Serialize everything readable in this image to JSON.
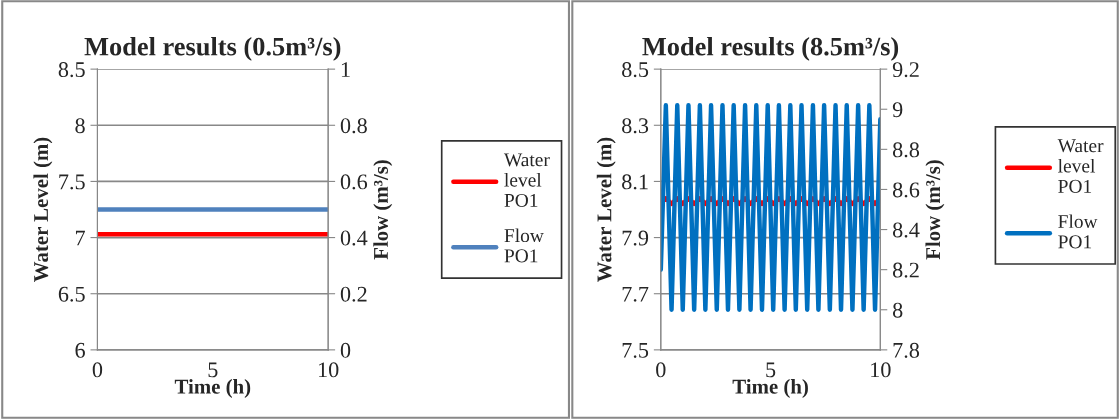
{
  "chart_data": [
    {
      "type": "line",
      "title": "Model results (0.5m³/s)",
      "xlabel": "Time (h)",
      "ylabel": "Water Level (m)",
      "y2label": "Flow (m³/s)",
      "xlim": [
        0,
        10
      ],
      "xticks": [
        0,
        5,
        10
      ],
      "ylim": [
        6,
        8.5
      ],
      "yticks": [
        6,
        6.5,
        7,
        7.5,
        8,
        8.5
      ],
      "y2lim": [
        0,
        1
      ],
      "y2ticks": [
        0,
        0.2,
        0.4,
        0.6,
        0.8,
        1
      ],
      "grid": "y",
      "legend": "right",
      "series": [
        {
          "name": "Water level PO1",
          "color": "#ff0000",
          "x": [
            0,
            10
          ],
          "values": [
            7.03,
            7.03
          ]
        },
        {
          "name": "Flow PO1",
          "color": "#4f81bd",
          "axis": "y2",
          "x": [
            0,
            10
          ],
          "values": [
            0.5,
            0.5
          ]
        }
      ]
    },
    {
      "type": "line",
      "title": "Model results (8.5m³/s)",
      "xlabel": "Time (h)",
      "ylabel": "Water Level (m)",
      "y2label": "Flow (m³/s)",
      "xlim": [
        0,
        10
      ],
      "xticks": [
        0,
        5,
        10
      ],
      "ylim": [
        7.5,
        8.5
      ],
      "yticks": [
        7.5,
        7.7,
        7.9,
        8.1,
        8.3,
        8.5
      ],
      "y2lim": [
        7.8,
        9.2
      ],
      "y2ticks": [
        7.8,
        8,
        8.2,
        8.4,
        8.6,
        8.8,
        9,
        9.2
      ],
      "grid": "y",
      "legend": "right",
      "series": [
        {
          "name": "Water level PO1",
          "color": "#ff0000",
          "x": [
            0,
            0.23,
            0.49,
            0.75,
            1.0,
            1.26,
            1.52,
            1.78,
            2.03,
            2.29,
            2.55,
            2.81,
            3.06,
            3.32,
            3.58,
            3.84,
            4.09,
            4.35,
            4.61,
            4.87,
            5.12,
            5.38,
            5.64,
            5.9,
            6.15,
            6.41,
            6.67,
            6.93,
            7.18,
            7.44,
            7.7,
            7.96,
            8.21,
            8.47,
            8.73,
            8.99,
            9.24,
            9.5,
            9.76,
            10
          ],
          "values": [
            8.03,
            8.04,
            8.02,
            8.04,
            8.02,
            8.04,
            8.02,
            8.04,
            8.02,
            8.04,
            8.02,
            8.04,
            8.02,
            8.04,
            8.02,
            8.04,
            8.02,
            8.04,
            8.02,
            8.04,
            8.02,
            8.04,
            8.02,
            8.04,
            8.02,
            8.04,
            8.02,
            8.04,
            8.02,
            8.04,
            8.02,
            8.04,
            8.02,
            8.04,
            8.02,
            8.04,
            8.02,
            8.04,
            8.02,
            8.04
          ]
        },
        {
          "name": "Flow PO1",
          "color": "#0070c0",
          "axis": "y2",
          "x": [
            0,
            0.23,
            0.49,
            0.75,
            1.0,
            1.26,
            1.52,
            1.78,
            2.03,
            2.29,
            2.55,
            2.81,
            3.06,
            3.32,
            3.58,
            3.84,
            4.09,
            4.35,
            4.61,
            4.87,
            5.12,
            5.38,
            5.64,
            5.9,
            6.15,
            6.41,
            6.67,
            6.93,
            7.18,
            7.44,
            7.7,
            7.96,
            8.21,
            8.47,
            8.73,
            8.99,
            9.24,
            9.5,
            9.76,
            10
          ],
          "values": [
            8.2,
            9.02,
            8.0,
            9.02,
            8.0,
            9.02,
            8.0,
            9.02,
            8.0,
            9.02,
            8.0,
            9.02,
            8.0,
            9.02,
            8.0,
            9.02,
            8.0,
            9.02,
            8.0,
            9.02,
            8.0,
            9.02,
            8.0,
            9.02,
            8.0,
            9.02,
            8.0,
            9.02,
            8.0,
            9.02,
            8.0,
            9.02,
            8.0,
            9.02,
            8.0,
            9.02,
            8.0,
            9.02,
            8.0,
            8.95
          ]
        }
      ]
    }
  ]
}
